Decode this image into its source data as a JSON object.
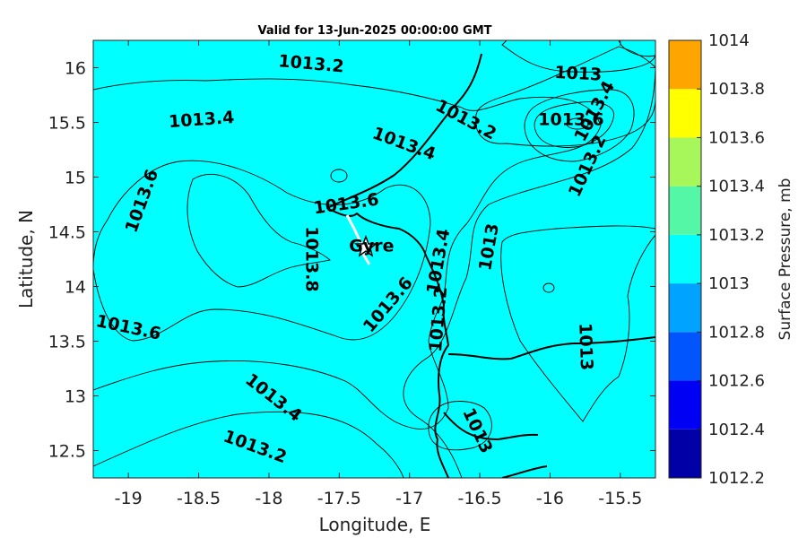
{
  "chart_data": {
    "type": "contour",
    "title": "Valid for 13-Jun-2025 00:00:00 GMT",
    "xlabel": "Longitude, E",
    "ylabel": "Latitude, N",
    "xlim": [
      -19.25,
      -15.25
    ],
    "ylim": [
      12.25,
      16.25
    ],
    "x_ticks": [
      -19,
      -18.5,
      -18,
      -17.5,
      -17,
      -16.5,
      -16,
      -15.5
    ],
    "y_ticks": [
      16,
      15.5,
      15,
      14.5,
      14,
      13.5,
      13,
      12.5
    ],
    "x_tick_labels": [
      "-19",
      "-18.5",
      "-18",
      "-17.5",
      "-17",
      "-16.5",
      "-16",
      "-15.5"
    ],
    "y_tick_labels": [
      "16",
      "15.5",
      "15",
      "14.5",
      "14",
      "13.5",
      "13",
      "12.5"
    ],
    "colorbar": {
      "label": "Surface Pressure, mb",
      "levels": [
        1012.2,
        1012.4,
        1012.6,
        1012.8,
        1013,
        1013.2,
        1013.4,
        1013.6,
        1013.8,
        1014
      ],
      "tick_labels": [
        "1012.2",
        "1012.4",
        "1012.6",
        "1012.8",
        "1013",
        "1013.2",
        "1013.4",
        "1013.6",
        "1013.8",
        "1014"
      ],
      "colors": [
        "#0000a6",
        "#0000f5",
        "#0055ff",
        "#00a3ff",
        "#00ffff",
        "#54f7a5",
        "#a7f75a",
        "#ffff00",
        "#ffa500",
        "#ff4f00"
      ]
    },
    "contour_labels": [
      {
        "text": "1013.2",
        "lon": -17.7,
        "lat": 16.03,
        "angle": 5
      },
      {
        "text": "1013.4",
        "lon": -18.48,
        "lat": 15.52,
        "angle": -4
      },
      {
        "text": "1013.6",
        "lon": -18.9,
        "lat": 14.78,
        "angle": -70
      },
      {
        "text": "1013.6",
        "lon": -17.45,
        "lat": 14.75,
        "angle": -8
      },
      {
        "text": "1013.8",
        "lon": -17.7,
        "lat": 14.25,
        "angle": 90
      },
      {
        "text": "1013.6",
        "lon": -19.0,
        "lat": 13.62,
        "angle": 12
      },
      {
        "text": "1013.6",
        "lon": -17.15,
        "lat": 13.83,
        "angle": -50
      },
      {
        "text": "1013.4",
        "lon": -17.04,
        "lat": 15.3,
        "angle": 20
      },
      {
        "text": "1013.2",
        "lon": -16.6,
        "lat": 15.52,
        "angle": 28
      },
      {
        "text": "1013",
        "lon": -15.8,
        "lat": 15.94,
        "angle": 3
      },
      {
        "text": "1013.6",
        "lon": -15.85,
        "lat": 15.52,
        "angle": 0
      },
      {
        "text": "1013.4",
        "lon": -15.68,
        "lat": 15.6,
        "angle": -62
      },
      {
        "text": "1013.2",
        "lon": -15.73,
        "lat": 15.1,
        "angle": -65
      },
      {
        "text": "1013.4",
        "lon": -16.79,
        "lat": 14.23,
        "angle": -80
      },
      {
        "text": "1013",
        "lon": -16.43,
        "lat": 14.36,
        "angle": -80
      },
      {
        "text": "1013.2",
        "lon": -16.79,
        "lat": 13.7,
        "angle": -85
      },
      {
        "text": "1013",
        "lon": -15.75,
        "lat": 13.45,
        "angle": 88
      },
      {
        "text": "1013.4",
        "lon": -17.97,
        "lat": 12.98,
        "angle": 38
      },
      {
        "text": "1013.2",
        "lon": -18.1,
        "lat": 12.53,
        "angle": 20
      },
      {
        "text": "1013",
        "lon": -16.52,
        "lat": 12.68,
        "angle": 65
      }
    ],
    "annotation": {
      "text": "Gyre",
      "lon": -17.27,
      "lat": 14.32
    },
    "grid": false
  }
}
